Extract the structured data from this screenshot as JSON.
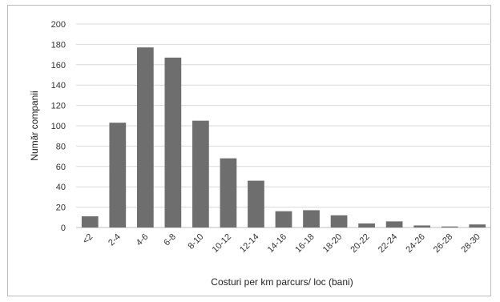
{
  "chart_data": {
    "type": "bar",
    "title": "",
    "xlabel": "Costuri per km parcurs/ loc (bani)",
    "ylabel": "Număr companii",
    "categories": [
      "<2",
      "2-4",
      "4-6",
      "6-8",
      "8-10",
      "10-12",
      "12-14",
      "14-16",
      "16-18",
      "18-20",
      "20-22",
      "22-24",
      "24-26",
      "26-28",
      "28-30"
    ],
    "values": [
      11,
      103,
      177,
      167,
      105,
      68,
      46,
      16,
      17,
      12,
      4,
      6,
      2,
      1,
      3
    ],
    "ylim": [
      0,
      200
    ],
    "yticks": [
      0,
      20,
      40,
      60,
      80,
      100,
      120,
      140,
      160,
      180,
      200
    ],
    "grid": true,
    "bar_color": "#6e6e6e",
    "grid_color": "#d9d9d9"
  }
}
